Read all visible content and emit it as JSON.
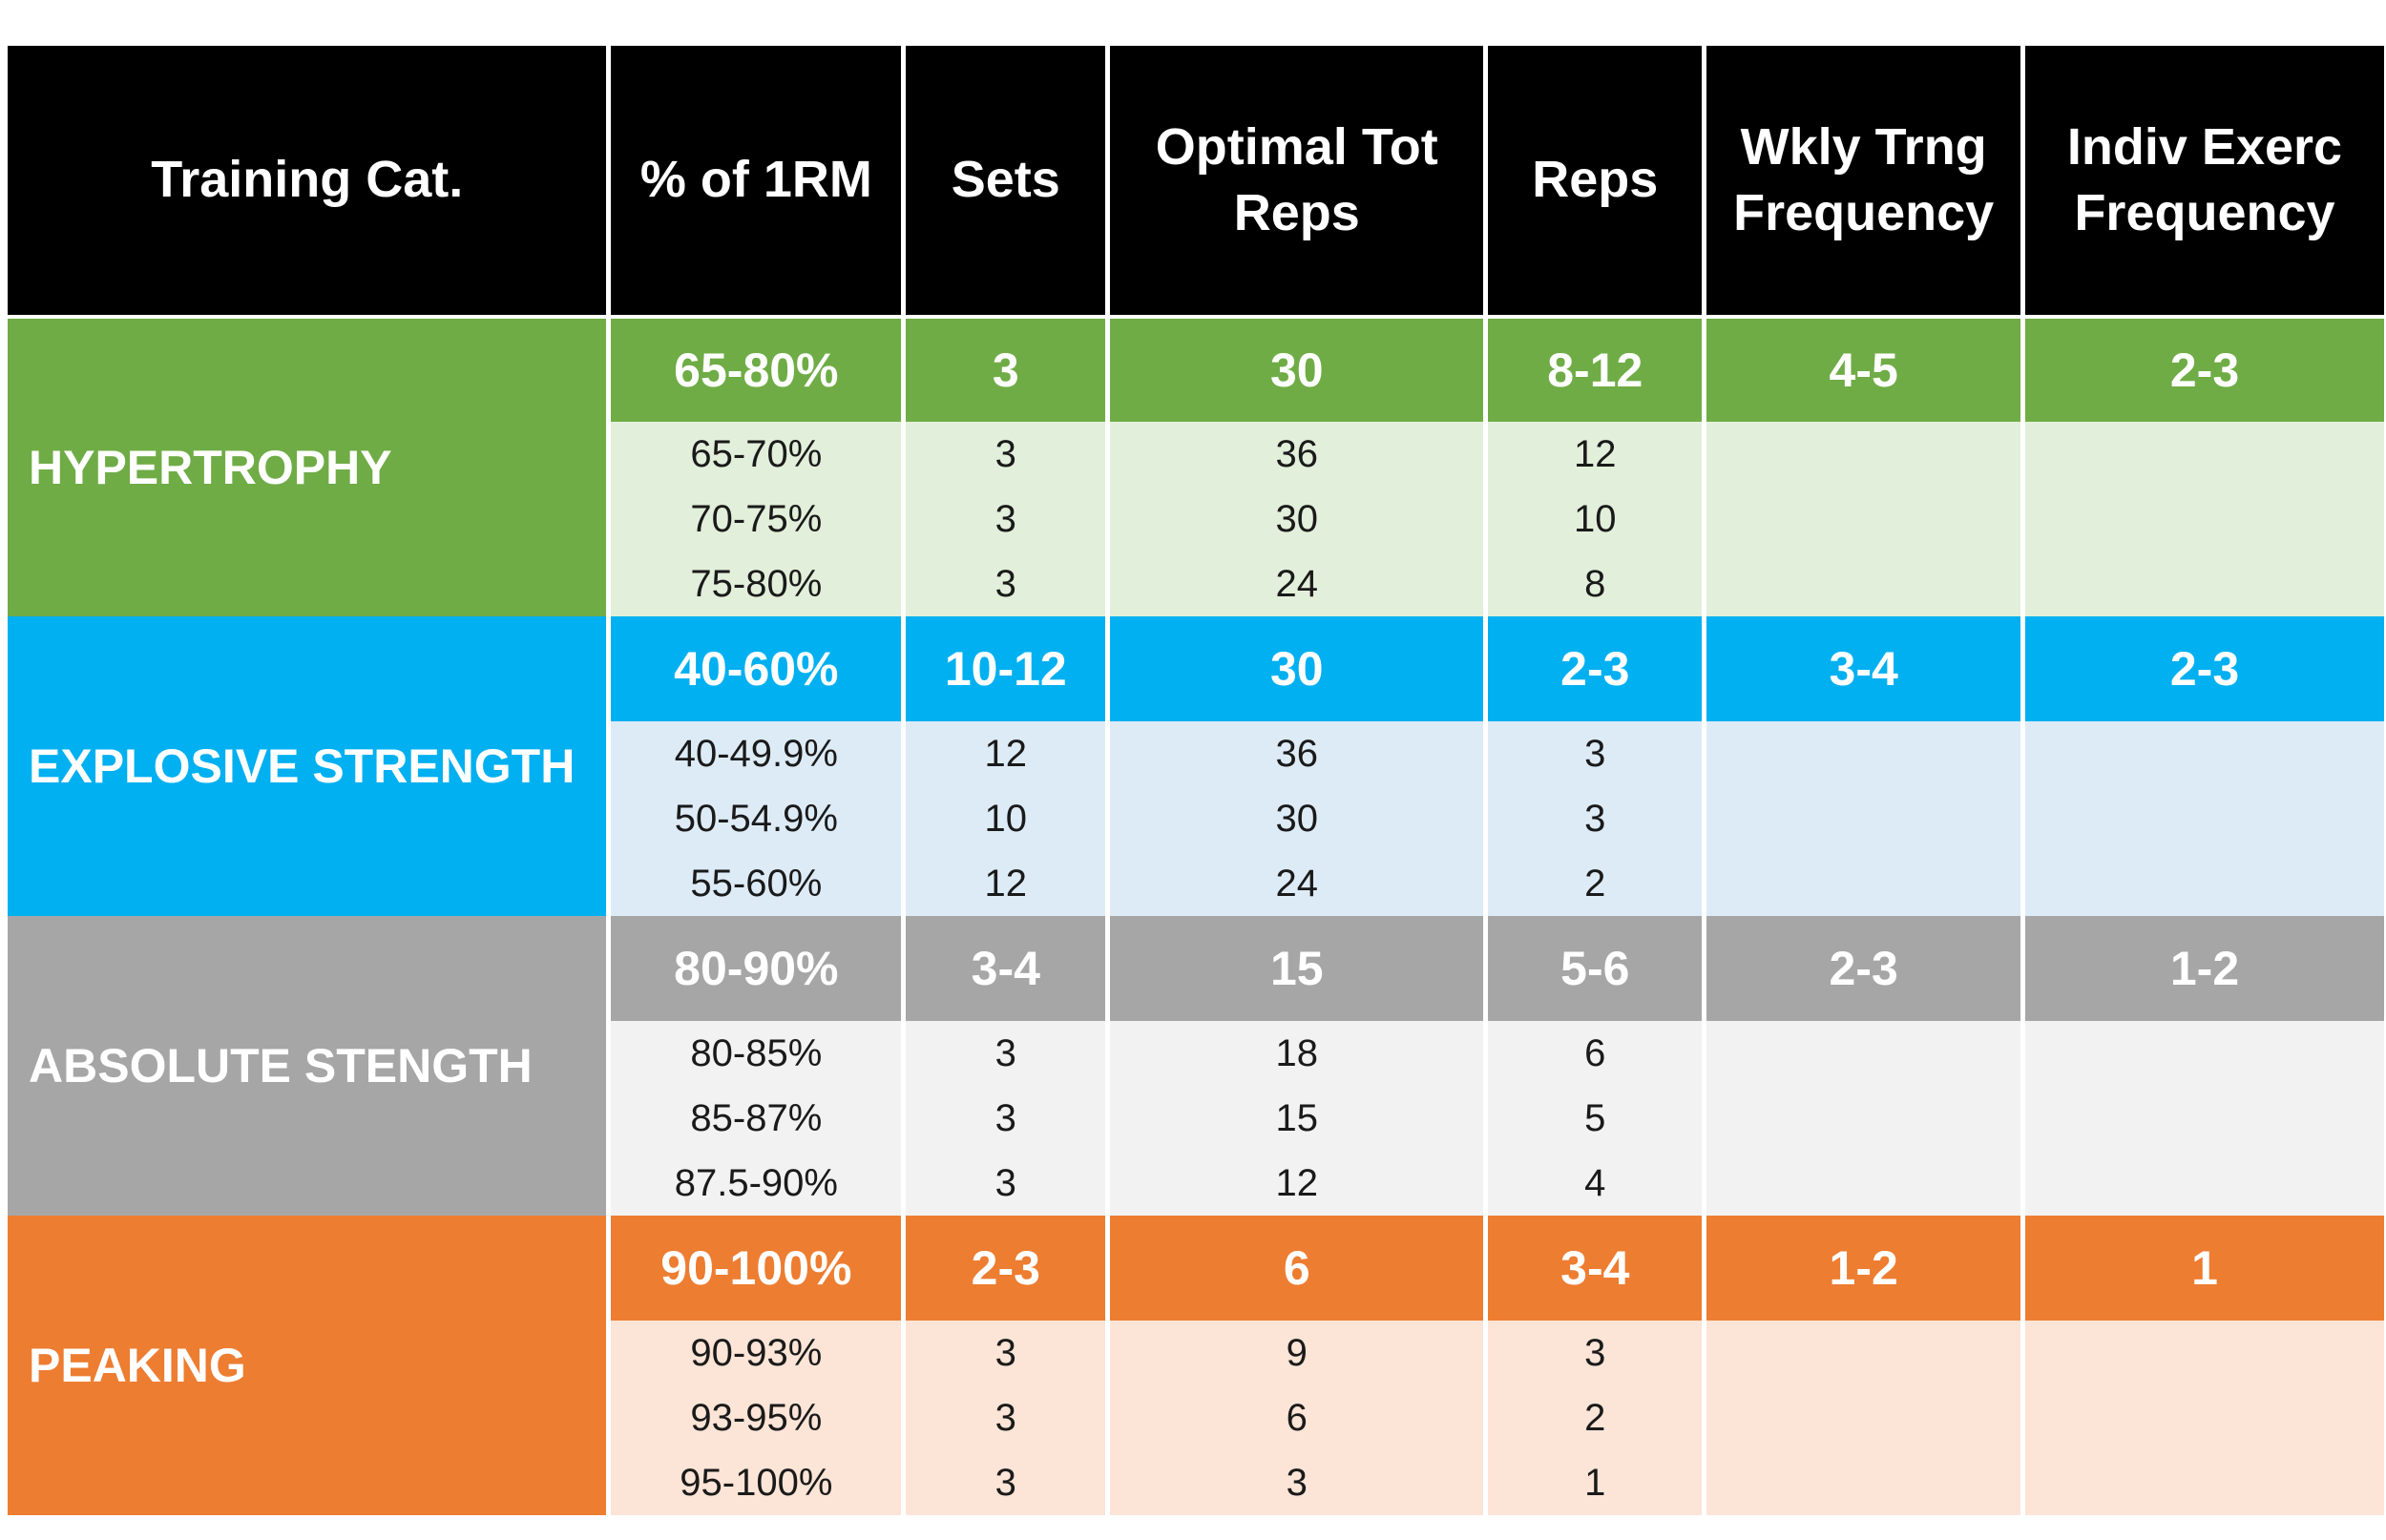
{
  "chart_data": {
    "type": "table",
    "columns": [
      "Training Cat.",
      "% of 1RM",
      "Sets",
      "Optimal Tot Reps",
      "Reps",
      "Wkly Trng Frequency",
      "Indiv Exerc Frequency"
    ],
    "header_bg": "#000000",
    "header_text_color": "#FFFFFF",
    "sections": [
      {
        "category": "HYPERTROPHY",
        "accent_color": "#6FAC46",
        "tint_color": "#E2EFDA",
        "summary": [
          "65-80%",
          "3",
          "30",
          "8-12",
          "4-5",
          "2-3"
        ],
        "details": [
          [
            "65-70%",
            "3",
            "36",
            "12",
            "",
            ""
          ],
          [
            "70-75%",
            "3",
            "30",
            "10",
            "",
            ""
          ],
          [
            "75-80%",
            "3",
            "24",
            "8",
            "",
            ""
          ]
        ]
      },
      {
        "category": "EXPLOSIVE STRENGTH",
        "accent_color": "#00B0F0",
        "tint_color": "#DDEBF7",
        "summary": [
          "40-60%",
          "10-12",
          "30",
          "2-3",
          "3-4",
          "2-3"
        ],
        "details": [
          [
            "40-49.9%",
            "12",
            "36",
            "3",
            "",
            ""
          ],
          [
            "50-54.9%",
            "10",
            "30",
            "3",
            "",
            ""
          ],
          [
            "55-60%",
            "12",
            "24",
            "2",
            "",
            ""
          ]
        ]
      },
      {
        "category": "ABSOLUTE STENGTH",
        "accent_color": "#A6A6A6",
        "tint_color": "#F2F2F2",
        "summary": [
          "80-90%",
          "3-4",
          "15",
          "5-6",
          "2-3",
          "1-2"
        ],
        "details": [
          [
            "80-85%",
            "3",
            "18",
            "6",
            "",
            ""
          ],
          [
            "85-87%",
            "3",
            "15",
            "5",
            "",
            ""
          ],
          [
            "87.5-90%",
            "3",
            "12",
            "4",
            "",
            ""
          ]
        ]
      },
      {
        "category": "PEAKING",
        "accent_color": "#ED7D31",
        "tint_color": "#FCE4D6",
        "summary": [
          "90-100%",
          "2-3",
          "6",
          "3-4",
          "1-2",
          "1"
        ],
        "details": [
          [
            "90-93%",
            "3",
            "9",
            "3",
            "",
            ""
          ],
          [
            "93-95%",
            "3",
            "6",
            "2",
            "",
            ""
          ],
          [
            "95-100%",
            "3",
            "3",
            "1",
            "",
            ""
          ]
        ]
      }
    ]
  }
}
